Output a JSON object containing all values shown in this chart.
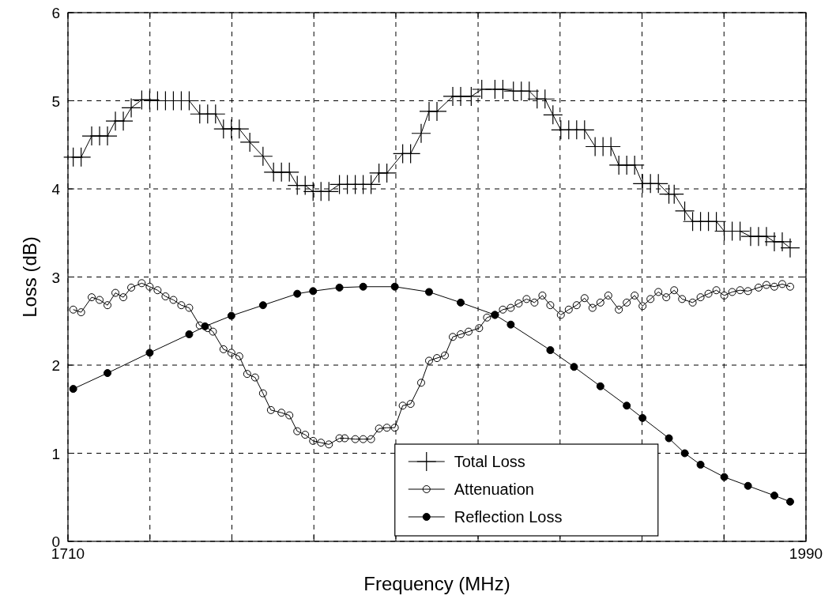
{
  "chart_data": {
    "type": "line",
    "xlabel": "Frequency (MHz)",
    "ylabel": "Loss (dB)",
    "xlim": [
      1710,
      1990
    ],
    "xticks": [
      1710,
      {
        "value": 1741.1,
        "label": null
      },
      {
        "value": 1772.2,
        "label": null
      },
      {
        "value": 1803.3,
        "label": null
      },
      {
        "value": 1834.4,
        "label": null
      },
      {
        "value": 1865.6,
        "label": null
      },
      {
        "value": 1896.7,
        "label": null
      },
      {
        "value": 1927.8,
        "label": null
      },
      {
        "value": 1958.9,
        "label": null
      },
      1990
    ],
    "ylim": [
      0,
      6
    ],
    "yticks": [
      0,
      1,
      2,
      3,
      4,
      5,
      6
    ],
    "grid": true,
    "legend": "bottom",
    "line_style": "solid",
    "series": [
      {
        "name": "Total Loss",
        "color": "#000000",
        "marker": "cross",
        "x": [
          1712,
          1715,
          1719,
          1722,
          1725,
          1728,
          1731,
          1734,
          1738,
          1741,
          1744,
          1747,
          1750,
          1753,
          1756,
          1760,
          1763,
          1766,
          1769,
          1772,
          1775,
          1779,
          1784,
          1788,
          1791,
          1794,
          1797,
          1800,
          1803,
          1806,
          1809,
          1813,
          1816,
          1819,
          1822,
          1825,
          1828,
          1831,
          1837,
          1840,
          1844,
          1847,
          1850,
          1856,
          1859,
          1863,
          1867,
          1872,
          1875,
          1879,
          1882,
          1885,
          1888,
          1891,
          1894,
          1897,
          1900,
          1903,
          1906,
          1910,
          1913,
          1916,
          1919,
          1922,
          1925,
          1928,
          1931,
          1934,
          1938,
          1940,
          1944,
          1947,
          1950,
          1953,
          1956,
          1959,
          1962,
          1965,
          1969,
          1972,
          1975,
          1978,
          1981,
          1984
        ],
        "values": [
          4.36,
          4.36,
          4.6,
          4.6,
          4.6,
          4.77,
          4.77,
          4.92,
          5.01,
          5.01,
          5.0,
          5.0,
          5.0,
          5.0,
          5.0,
          4.85,
          4.85,
          4.85,
          4.68,
          4.68,
          4.68,
          4.53,
          4.37,
          4.19,
          4.19,
          4.19,
          4.04,
          4.04,
          3.97,
          3.97,
          3.97,
          4.05,
          4.05,
          4.05,
          4.05,
          4.05,
          4.18,
          4.18,
          4.4,
          4.4,
          4.63,
          4.88,
          4.88,
          5.05,
          5.05,
          5.05,
          5.13,
          5.13,
          5.13,
          5.11,
          5.11,
          5.11,
          5.02,
          5.02,
          4.84,
          4.67,
          4.67,
          4.67,
          4.67,
          4.48,
          4.48,
          4.48,
          4.27,
          4.27,
          4.27,
          4.06,
          4.06,
          4.06,
          3.94,
          3.94,
          3.75,
          3.63,
          3.63,
          3.63,
          3.63,
          3.52,
          3.52,
          3.52,
          3.46,
          3.46,
          3.46,
          3.4,
          3.4,
          3.33
        ]
      },
      {
        "name": "Attenuation",
        "color": "#000000",
        "marker": "circle",
        "x": [
          1712,
          1715,
          1719,
          1722,
          1725,
          1728,
          1731,
          1734,
          1738,
          1741,
          1744,
          1747,
          1750,
          1753,
          1756,
          1760,
          1763,
          1765,
          1769,
          1772,
          1775,
          1778,
          1781,
          1784,
          1787,
          1791,
          1794,
          1797,
          1800,
          1803,
          1806,
          1809,
          1813,
          1815,
          1819,
          1822,
          1825,
          1828,
          1831,
          1834,
          1837,
          1840,
          1844,
          1847,
          1850,
          1853,
          1856,
          1859,
          1862,
          1866,
          1869,
          1872,
          1875,
          1878,
          1881,
          1884,
          1887,
          1890,
          1893,
          1897,
          1900,
          1903,
          1906,
          1909,
          1912,
          1915,
          1919,
          1922,
          1925,
          1928,
          1931,
          1934,
          1937,
          1940,
          1943,
          1947,
          1950,
          1953,
          1956,
          1959,
          1962,
          1965,
          1968,
          1972,
          1975,
          1978,
          1981,
          1984
        ],
        "values": [
          2.63,
          2.6,
          2.77,
          2.74,
          2.68,
          2.82,
          2.77,
          2.88,
          2.93,
          2.89,
          2.85,
          2.78,
          2.74,
          2.68,
          2.65,
          2.45,
          2.42,
          2.38,
          2.18,
          2.14,
          2.1,
          1.9,
          1.86,
          1.68,
          1.49,
          1.46,
          1.43,
          1.25,
          1.21,
          1.14,
          1.12,
          1.1,
          1.17,
          1.17,
          1.16,
          1.16,
          1.16,
          1.28,
          1.29,
          1.29,
          1.54,
          1.56,
          1.8,
          2.05,
          2.08,
          2.11,
          2.32,
          2.35,
          2.38,
          2.42,
          2.54,
          2.57,
          2.63,
          2.65,
          2.7,
          2.75,
          2.71,
          2.79,
          2.68,
          2.57,
          2.63,
          2.68,
          2.76,
          2.65,
          2.71,
          2.79,
          2.63,
          2.71,
          2.79,
          2.67,
          2.75,
          2.83,
          2.77,
          2.85,
          2.75,
          2.71,
          2.77,
          2.81,
          2.85,
          2.79,
          2.83,
          2.85,
          2.84,
          2.88,
          2.91,
          2.89,
          2.92,
          2.89
        ]
      },
      {
        "name": "Reflection Loss",
        "color": "#000000",
        "marker": "circle",
        "x": [
          1712,
          1725,
          1741,
          1756,
          1762,
          1772,
          1784,
          1797,
          1803,
          1813,
          1822,
          1834,
          1847,
          1859,
          1872,
          1878,
          1893,
          1902,
          1912,
          1922,
          1928,
          1938,
          1944,
          1950,
          1959,
          1968,
          1978,
          1984
        ],
        "values": [
          1.73,
          1.91,
          2.14,
          2.35,
          2.44,
          2.56,
          2.68,
          2.81,
          2.84,
          2.88,
          2.89,
          2.89,
          2.83,
          2.71,
          2.57,
          2.46,
          2.17,
          1.98,
          1.76,
          1.54,
          1.4,
          1.17,
          1.0,
          0.87,
          0.73,
          0.63,
          0.52,
          0.45
        ]
      }
    ]
  }
}
